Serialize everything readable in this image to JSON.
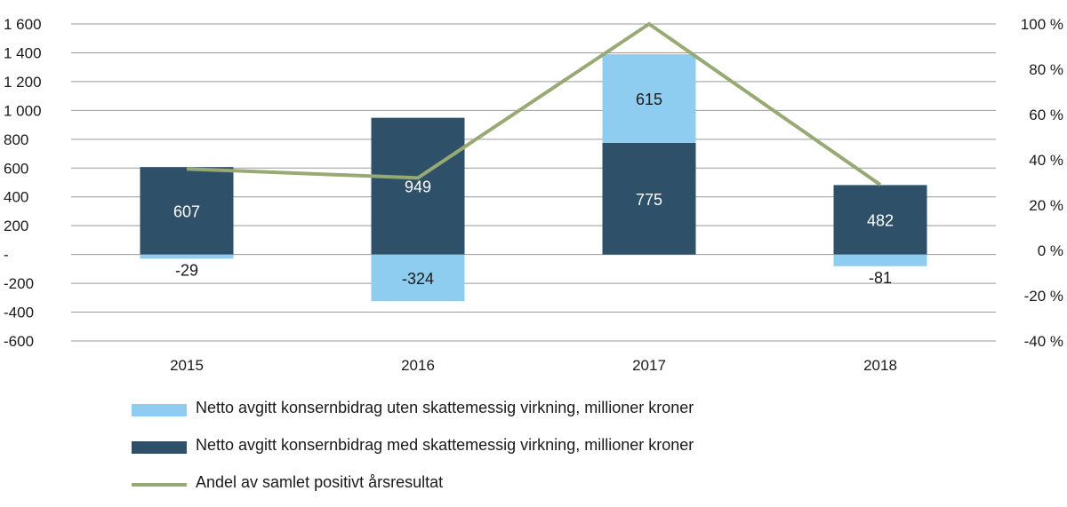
{
  "chart_data": {
    "type": "bar",
    "categories": [
      "2015",
      "2016",
      "2017",
      "2018"
    ],
    "series": [
      {
        "name": "Netto avgitt konsernbidrag uten skattemessig virkning, millioner kroner",
        "kind": "stacked-bar",
        "color": "#8fcdf0",
        "values": [
          -29,
          -324,
          615,
          -81
        ],
        "labels": [
          "-29",
          "-324",
          "615",
          "-81"
        ]
      },
      {
        "name": "Netto avgitt konsernbidrag med skattemessig virkning, millioner kroner",
        "kind": "stacked-bar",
        "color": "#2f5069",
        "values": [
          607,
          949,
          775,
          482
        ],
        "labels": [
          "607",
          "949",
          "775",
          "482"
        ]
      },
      {
        "name": "Andel av samlet positivt årsresultat",
        "kind": "line",
        "axis": "right",
        "color": "#97aa74",
        "values": [
          36,
          32,
          100,
          29
        ]
      }
    ],
    "left_axis": {
      "ylim": [
        -600,
        1600
      ],
      "ticks": [
        {
          "v": 1600,
          "t": "1 600"
        },
        {
          "v": 1400,
          "t": "1 400"
        },
        {
          "v": 1200,
          "t": "1 200"
        },
        {
          "v": 1000,
          "t": "1 000"
        },
        {
          "v": 800,
          "t": "800"
        },
        {
          "v": 600,
          "t": "600"
        },
        {
          "v": 400,
          "t": "400"
        },
        {
          "v": 200,
          "t": "200"
        },
        {
          "v": 0,
          "t": "-"
        },
        {
          "v": -200,
          "t": "-200"
        },
        {
          "v": -400,
          "t": "-400"
        },
        {
          "v": -600,
          "t": "-600"
        }
      ]
    },
    "right_axis": {
      "ylim": [
        -40,
        100
      ],
      "ticks": [
        {
          "v": 100,
          "t": "100 %"
        },
        {
          "v": 80,
          "t": "80 %"
        },
        {
          "v": 60,
          "t": "60 %"
        },
        {
          "v": 40,
          "t": "40 %"
        },
        {
          "v": 20,
          "t": "20 %"
        },
        {
          "v": 0,
          "t": "0 %"
        },
        {
          "v": -20,
          "t": "-20 %"
        },
        {
          "v": -40,
          "t": "-40 %"
        }
      ]
    },
    "grid": true,
    "legend_position": "bottom-left"
  }
}
